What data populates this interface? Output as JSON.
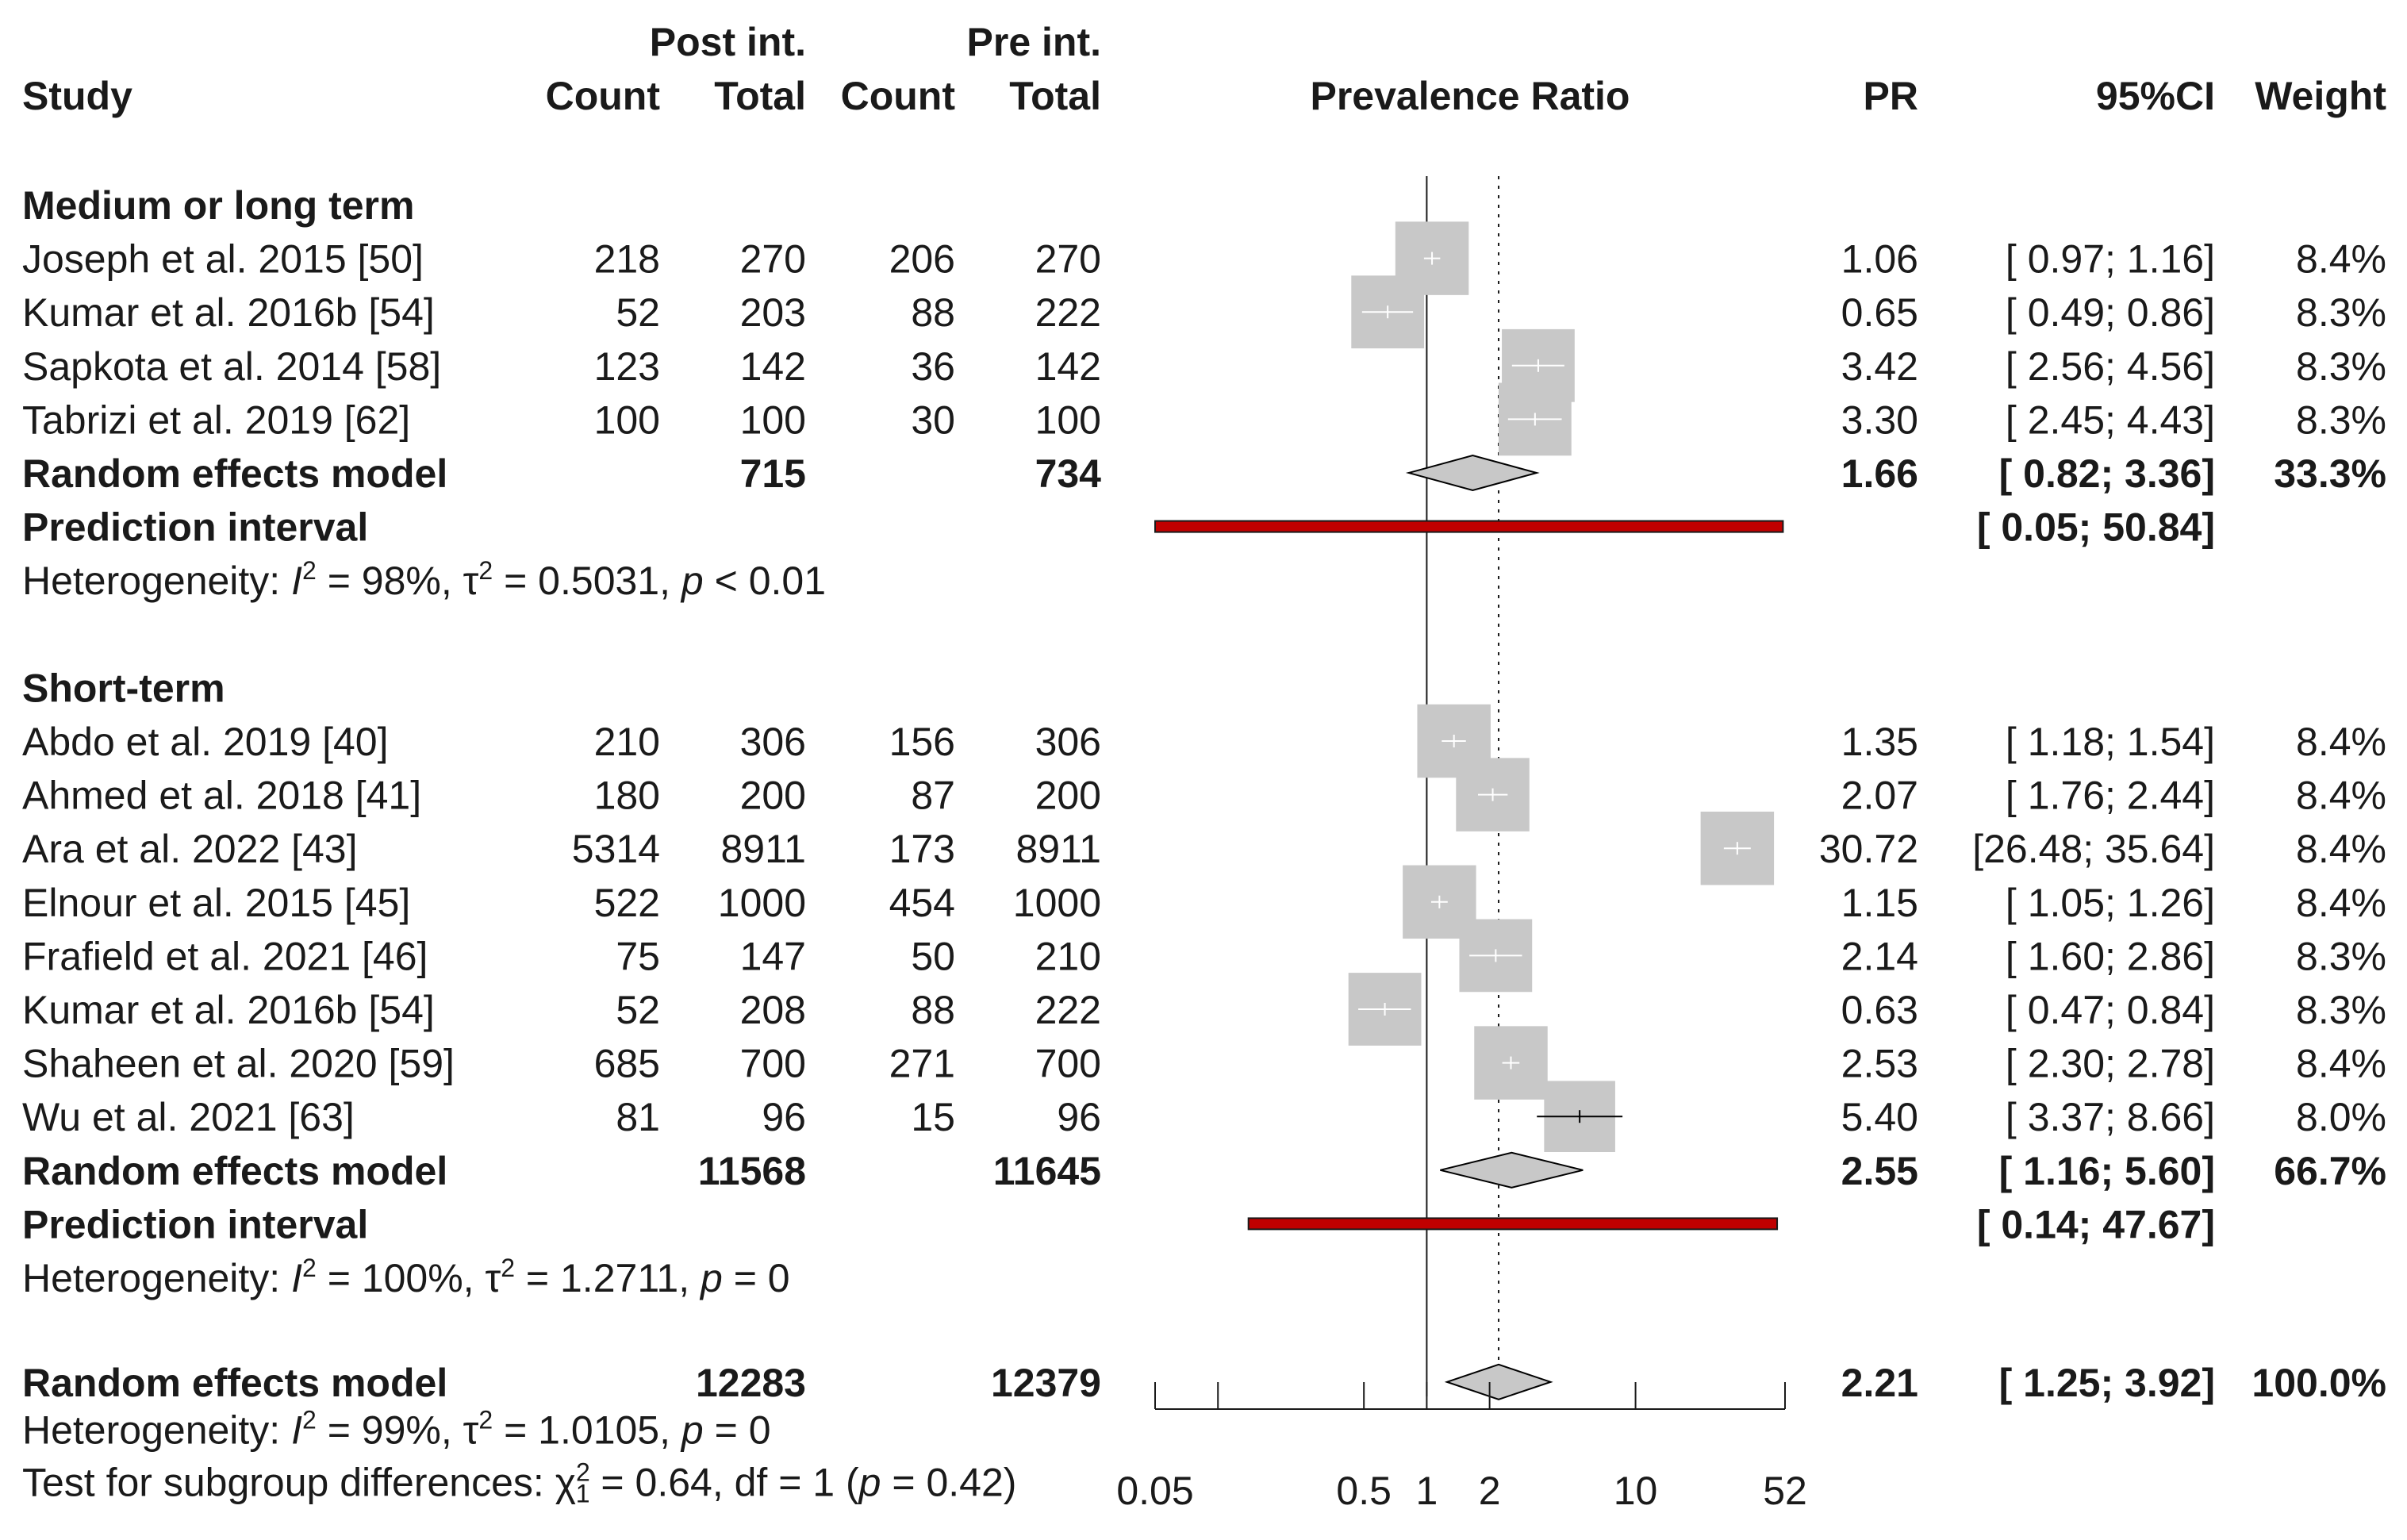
{
  "chart_data": {
    "type": "forest",
    "title": "Prevalence Ratio",
    "x_axis": {
      "scale": "log",
      "range": [
        0.05,
        52
      ],
      "ticks": [
        0.05,
        0.1,
        0.5,
        1,
        2,
        10,
        52
      ],
      "tick_labels": [
        "0.05",
        "0.5",
        "1",
        "2",
        "10",
        "52"
      ],
      "null_line": 1,
      "overall_line": 2.21
    },
    "column_groups": {
      "post": "Post int.",
      "pre": "Pre int."
    },
    "columns": {
      "study": "Study",
      "count": "Count",
      "total": "Total",
      "pr": "PR",
      "ci": "95%CI",
      "weight": "Weight"
    },
    "groups": [
      {
        "name": "Medium or long term",
        "studies": [
          {
            "study": "Joseph et al. 2015 [50]",
            "post_count": "218",
            "post_total": "270",
            "pre_count": "206",
            "pre_total": "270",
            "pr_text": "1.06",
            "ci_text": "[ 0.97;  1.16]",
            "weight_text": "8.4%",
            "pr": 1.06,
            "lower": 0.97,
            "upper": 1.16,
            "weight": 8.4
          },
          {
            "study": "Kumar et al. 2016b [54]",
            "post_count": "52",
            "post_total": "203",
            "pre_count": "88",
            "pre_total": "222",
            "pr_text": "0.65",
            "ci_text": "[ 0.49;  0.86]",
            "weight_text": "8.3%",
            "pr": 0.65,
            "lower": 0.49,
            "upper": 0.86,
            "weight": 8.3
          },
          {
            "study": "Sapkota et al. 2014 [58]",
            "post_count": "123",
            "post_total": "142",
            "pre_count": "36",
            "pre_total": "142",
            "pr_text": "3.42",
            "ci_text": "[ 2.56;  4.56]",
            "weight_text": "8.3%",
            "pr": 3.42,
            "lower": 2.56,
            "upper": 4.56,
            "weight": 8.3
          },
          {
            "study": "Tabrizi et al. 2019 [62]",
            "post_count": "100",
            "post_total": "100",
            "pre_count": "30",
            "pre_total": "100",
            "pr_text": "3.30",
            "ci_text": "[ 2.45;  4.43]",
            "weight_text": "8.3%",
            "pr": 3.3,
            "lower": 2.45,
            "upper": 4.43,
            "weight": 8.3
          }
        ],
        "model": {
          "label": "Random effects model",
          "post_total": "715",
          "pre_total": "734",
          "pr_text": "1.66",
          "ci_text": "[ 0.82;  3.36]",
          "weight_text": "33.3%",
          "pr": 1.66,
          "lower": 0.82,
          "upper": 3.36
        },
        "prediction": {
          "label": "Prediction interval",
          "ci_text": "[ 0.05; 50.84]",
          "lower": 0.05,
          "upper": 50.84
        },
        "heterogeneity": {
          "prefix": "Heterogeneity: ",
          "i2_symbol": "I",
          "i2_sup": "2",
          "i2_value": " = 98%, ",
          "tau_symbol": "τ",
          "tau_sup": "2",
          "tau_value": " = 0.5031, ",
          "p_symbol": "p",
          "p_value": " < 0.01"
        }
      },
      {
        "name": "Short-term",
        "studies": [
          {
            "study": "Abdo et al. 2019 [40]",
            "post_count": "210",
            "post_total": "306",
            "pre_count": "156",
            "pre_total": "306",
            "pr_text": "1.35",
            "ci_text": "[ 1.18;  1.54]",
            "weight_text": "8.4%",
            "pr": 1.35,
            "lower": 1.18,
            "upper": 1.54,
            "weight": 8.4
          },
          {
            "study": "Ahmed et al. 2018 [41]",
            "post_count": "180",
            "post_total": "200",
            "pre_count": "87",
            "pre_total": "200",
            "pr_text": "2.07",
            "ci_text": "[ 1.76;  2.44]",
            "weight_text": "8.4%",
            "pr": 2.07,
            "lower": 1.76,
            "upper": 2.44,
            "weight": 8.4
          },
          {
            "study": "Ara et al. 2022 [43]",
            "post_count": "5314",
            "post_total": "8911",
            "pre_count": "173",
            "pre_total": "8911",
            "pr_text": "30.72",
            "ci_text": "[26.48; 35.64]",
            "weight_text": "8.4%",
            "pr": 30.72,
            "lower": 26.48,
            "upper": 35.64,
            "weight": 8.4
          },
          {
            "study": "Elnour et al. 2015 [45]",
            "post_count": "522",
            "post_total": "1000",
            "pre_count": "454",
            "pre_total": "1000",
            "pr_text": "1.15",
            "ci_text": "[ 1.05;  1.26]",
            "weight_text": "8.4%",
            "pr": 1.15,
            "lower": 1.05,
            "upper": 1.26,
            "weight": 8.4
          },
          {
            "study": "Frafield et al. 2021 [46]",
            "post_count": "75",
            "post_total": "147",
            "pre_count": "50",
            "pre_total": "210",
            "pr_text": "2.14",
            "ci_text": "[ 1.60;  2.86]",
            "weight_text": "8.3%",
            "pr": 2.14,
            "lower": 1.6,
            "upper": 2.86,
            "weight": 8.3
          },
          {
            "study": "Kumar et al. 2016b [54]",
            "post_count": "52",
            "post_total": "208",
            "pre_count": "88",
            "pre_total": "222",
            "pr_text": "0.63",
            "ci_text": "[ 0.47;  0.84]",
            "weight_text": "8.3%",
            "pr": 0.63,
            "lower": 0.47,
            "upper": 0.84,
            "weight": 8.3
          },
          {
            "study": "Shaheen et al. 2020 [59]",
            "post_count": "685",
            "post_total": "700",
            "pre_count": "271",
            "pre_total": "700",
            "pr_text": "2.53",
            "ci_text": "[ 2.30;  2.78]",
            "weight_text": "8.4%",
            "pr": 2.53,
            "lower": 2.3,
            "upper": 2.78,
            "weight": 8.4
          },
          {
            "study": "Wu et al. 2021 [63]",
            "post_count": "81",
            "post_total": "96",
            "pre_count": "15",
            "pre_total": "96",
            "pr_text": "5.40",
            "ci_text": "[ 3.37;  8.66]",
            "weight_text": "8.0%",
            "pr": 5.4,
            "lower": 3.37,
            "upper": 8.66,
            "weight": 8.0
          }
        ],
        "model": {
          "label": "Random effects model",
          "post_total": "11568",
          "pre_total": "11645",
          "pr_text": "2.55",
          "ci_text": "[ 1.16;  5.60]",
          "weight_text": "66.7%",
          "pr": 2.55,
          "lower": 1.16,
          "upper": 5.6
        },
        "prediction": {
          "label": "Prediction interval",
          "ci_text": "[ 0.14; 47.67]",
          "lower": 0.14,
          "upper": 47.67
        },
        "heterogeneity": {
          "prefix": "Heterogeneity: ",
          "i2_symbol": "I",
          "i2_sup": "2",
          "i2_value": " = 100%, ",
          "tau_symbol": "τ",
          "tau_sup": "2",
          "tau_value": " = 1.2711, ",
          "p_symbol": "p",
          "p_value": " = 0"
        }
      }
    ],
    "overall": {
      "label": "Random effects model",
      "post_total": "12283",
      "pre_total": "12379",
      "pr_text": "2.21",
      "ci_text": "[ 1.25;  3.92]",
      "weight_text": "100.0%",
      "pr": 2.21,
      "lower": 1.25,
      "upper": 3.92,
      "heterogeneity": {
        "prefix": "Heterogeneity: ",
        "i2_symbol": "I",
        "i2_sup": "2",
        "i2_value": " = 99%, ",
        "tau_symbol": "τ",
        "tau_sup": "2",
        "tau_value": " = 1.0105, ",
        "p_symbol": "p",
        "p_value": " = 0"
      },
      "subgroup_test": {
        "prefix": "Test for subgroup differences: ",
        "chi_symbol": "χ",
        "chi_sup": "2",
        "chi_sub": "1",
        "stat": " = 0.64, df = 1 (",
        "p_symbol": "p",
        "p_value": " = 0.42)"
      }
    },
    "colors": {
      "text": "#1a1a1a",
      "box_fill": "#c8c8c8",
      "ci_line": "#000000",
      "diamond_fill": "#c8c8c8",
      "prediction_fill": "#c00000",
      "prediction_border": "#1a1a1a",
      "axis": "#1a1a1a"
    }
  }
}
